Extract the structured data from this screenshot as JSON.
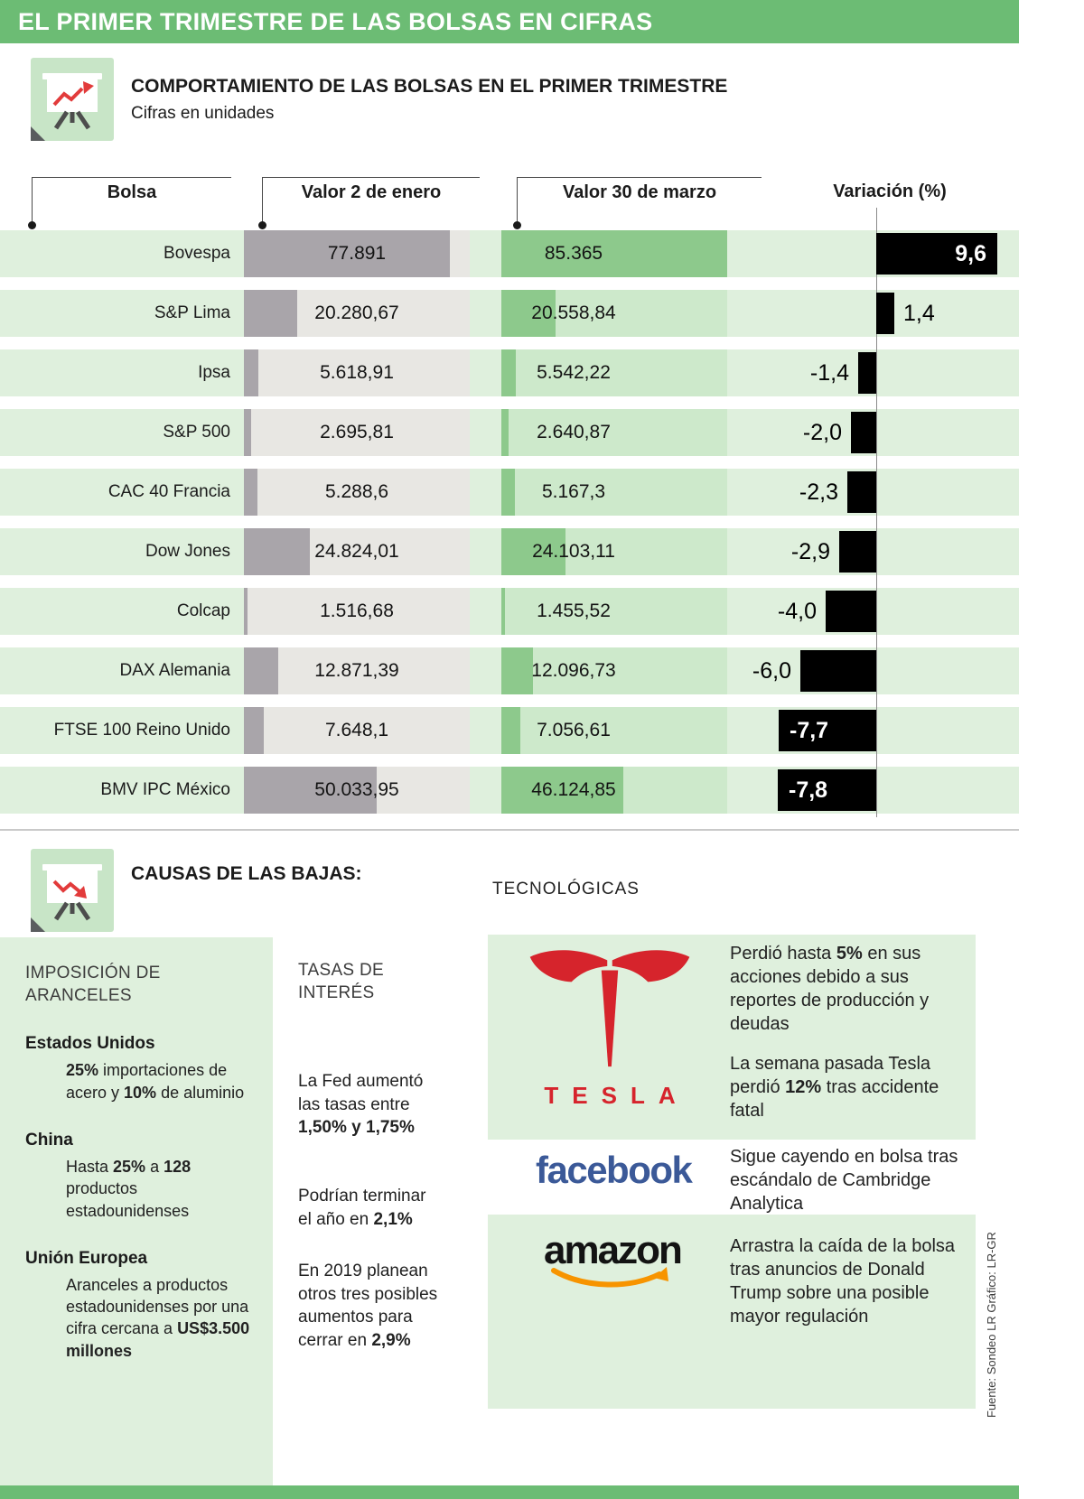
{
  "colors": {
    "header_green": "#6cbc74",
    "stripe_green": "#dff0dd",
    "bar_green": "#8dc98c",
    "column_green_bg": "#cde9cb",
    "bar_gray": "#a9a5aa",
    "column_gray_bg": "#e8e7e3",
    "variation_bar_black": "#000000",
    "tesla_red": "#d6242c",
    "facebook_blue": "#3b5998",
    "amazon_orange": "#f79400"
  },
  "header": {
    "title": "EL PRIMER TRIMESTRE DE LAS BOLSAS EN CIFRAS"
  },
  "section1": {
    "title": "COMPORTAMIENTO DE LAS BOLSAS EN EL PRIMER TRIMESTRE",
    "subtitle": "Cifras en unidades",
    "columns": {
      "bolsa": "Bolsa",
      "jan": "Valor 2 de enero",
      "mar": "Valor 30 de marzo",
      "variation": "Variación (%)"
    }
  },
  "chart_data": {
    "type": "bar",
    "orientation": "horizontal",
    "categories": [
      "Bovespa",
      "S&P Lima",
      "Ipsa",
      "S&P 500",
      "CAC 40 Francia",
      "Dow Jones",
      "Colcap",
      "DAX Alemania",
      "FTSE 100 Reino Unido",
      "BMV IPC México"
    ],
    "series": [
      {
        "name": "Valor 2 de enero",
        "values": [
          77891,
          20280.67,
          5618.91,
          2695.81,
          5288.6,
          24824.01,
          1516.68,
          12871.39,
          7648.1,
          50033.95
        ],
        "labels": [
          "77.891",
          "20.280,67",
          "5.618,91",
          "2.695,81",
          "5.288,6",
          "24.824,01",
          "1.516,68",
          "12.871,39",
          "7.648,1",
          "50.033,95"
        ]
      },
      {
        "name": "Valor 30 de marzo",
        "values": [
          85365,
          20558.84,
          5542.22,
          2640.87,
          5167.3,
          24103.11,
          1455.52,
          12096.73,
          7056.61,
          46124.85
        ],
        "labels": [
          "85.365",
          "20.558,84",
          "5.542,22",
          "2.640,87",
          "5.167,3",
          "24.103,11",
          "1.455,52",
          "12.096,73",
          "7.056,61",
          "46.124,85"
        ]
      },
      {
        "name": "Variación (%)",
        "values": [
          9.6,
          1.4,
          -1.4,
          -2.0,
          -2.3,
          -2.9,
          -4.0,
          -6.0,
          -7.7,
          -7.8
        ],
        "labels": [
          "9,6",
          "1,4",
          "-1,4",
          "-2,0",
          "-2,3",
          "-2,9",
          "-4,0",
          "-6,0",
          "-7,7",
          "-7,8"
        ]
      }
    ],
    "value_axis_max": 85365,
    "variation_range": [
      -8,
      10
    ],
    "legend_position": "column-headers",
    "grid": false
  },
  "section2": {
    "title": "CAUSAS DE LAS BAJAS:",
    "tech_heading": "TECNOLÓGICAS",
    "tariffs": {
      "heading": "IMPOSICIÓN DE ARANCELES",
      "items": [
        {
          "country": "Estados Unidos",
          "text": [
            {
              "t": "25%",
              "b": true
            },
            {
              "t": " importaciones de acero y ",
              "b": false
            },
            {
              "t": "10%",
              "b": true
            },
            {
              "t": " de aluminio",
              "b": false
            }
          ]
        },
        {
          "country": "China",
          "text": [
            {
              "t": "Hasta ",
              "b": false
            },
            {
              "t": "25%",
              "b": true
            },
            {
              "t": " a ",
              "b": false
            },
            {
              "t": "128",
              "b": true
            },
            {
              "t": " productos estadounidenses",
              "b": false
            }
          ]
        },
        {
          "country": "Unión Europea",
          "text": [
            {
              "t": "Aranceles a productos estadounidenses por una cifra cercana a ",
              "b": false
            },
            {
              "t": "US$3.500 millones",
              "b": true
            }
          ]
        }
      ]
    },
    "rates": {
      "heading": "TASAS DE INTERÉS",
      "paragraphs": [
        [
          {
            "t": "La Fed aumentó las tasas entre ",
            "b": false
          },
          {
            "t": "1,50% y 1,75%",
            "b": true
          }
        ],
        [
          {
            "t": "Podrían terminar el año en ",
            "b": false
          },
          {
            "t": "2,1%",
            "b": true
          }
        ],
        [
          {
            "t": "En 2019 planean otros tres posibles aumentos para cerrar en ",
            "b": false
          },
          {
            "t": "2,9%",
            "b": true
          }
        ]
      ]
    },
    "tech": {
      "tesla": {
        "brand": "TESLA",
        "paragraphs": [
          [
            {
              "t": "Perdió hasta ",
              "b": false
            },
            {
              "t": "5%",
              "b": true
            },
            {
              "t": " en sus acciones debido a sus reportes de producción y deudas",
              "b": false
            }
          ],
          [
            {
              "t": "La semana pasada Tesla perdió ",
              "b": false
            },
            {
              "t": "12%",
              "b": true
            },
            {
              "t": " tras accidente fatal",
              "b": false
            }
          ]
        ]
      },
      "facebook": {
        "brand": "facebook",
        "paragraphs": [
          [
            {
              "t": "Sigue cayendo en bolsa tras escándalo de Cambridge Analytica",
              "b": false
            }
          ]
        ]
      },
      "amazon": {
        "brand": "amazon",
        "paragraphs": [
          [
            {
              "t": "Arrastra la caída de la bolsa tras anuncios de Donald Trump sobre una posible mayor regulación",
              "b": false
            }
          ]
        ]
      }
    }
  },
  "source": "Fuente: Sondeo LR   Gráfico: LR-GR"
}
